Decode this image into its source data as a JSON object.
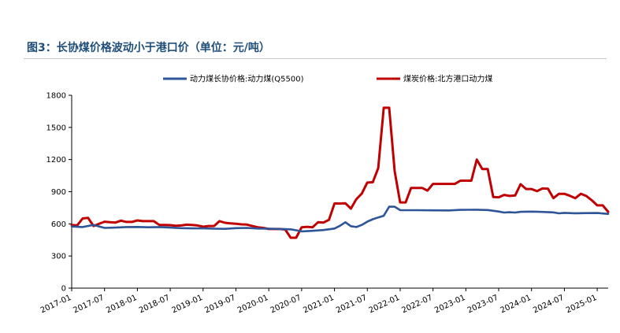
{
  "figure": {
    "title": "图3：长协煤价格波动小于港口价（单位：元/吨）"
  },
  "chart_data": {
    "type": "line",
    "title": "图3：长协煤价格波动小于港口价（单位：元/吨）",
    "xlabel": "",
    "ylabel": "",
    "ylim": [
      0,
      1800
    ],
    "yticks": [
      0,
      300,
      600,
      900,
      1200,
      1500,
      1800
    ],
    "xticks": [
      "2017-01",
      "2017-07",
      "2018-01",
      "2018-07",
      "2019-01",
      "2019-07",
      "2020-01",
      "2020-07",
      "2021-01",
      "2021-07",
      "2022-01",
      "2022-07",
      "2023-01",
      "2023-07",
      "2024-01",
      "2024-07",
      "2025-01"
    ],
    "legend_position": "top",
    "grid": false,
    "series": [
      {
        "name": "动力煤长协价格:动力煤(Q5500)",
        "color": "#2E5597",
        "points": [
          [
            "2017-01",
            575
          ],
          [
            "2017-03",
            570
          ],
          [
            "2017-05",
            590
          ],
          [
            "2017-07",
            562
          ],
          [
            "2017-09",
            565
          ],
          [
            "2017-11",
            570
          ],
          [
            "2018-01",
            571
          ],
          [
            "2018-03",
            568
          ],
          [
            "2018-05",
            570
          ],
          [
            "2018-07",
            565
          ],
          [
            "2018-09",
            560
          ],
          [
            "2018-11",
            558
          ],
          [
            "2019-01",
            558
          ],
          [
            "2019-03",
            555
          ],
          [
            "2019-05",
            553
          ],
          [
            "2019-07",
            560
          ],
          [
            "2019-09",
            562
          ],
          [
            "2019-11",
            556
          ],
          [
            "2020-01",
            555
          ],
          [
            "2020-03",
            552
          ],
          [
            "2020-05",
            549
          ],
          [
            "2020-06",
            540
          ],
          [
            "2020-07",
            530
          ],
          [
            "2020-09",
            535
          ],
          [
            "2020-11",
            542
          ],
          [
            "2021-01",
            556
          ],
          [
            "2021-02",
            582
          ],
          [
            "2021-03",
            615
          ],
          [
            "2021-04",
            578
          ],
          [
            "2021-05",
            570
          ],
          [
            "2021-06",
            590
          ],
          [
            "2021-07",
            620
          ],
          [
            "2021-08",
            643
          ],
          [
            "2021-09",
            660
          ],
          [
            "2021-10",
            675
          ],
          [
            "2021-11",
            760
          ],
          [
            "2021-12",
            760
          ],
          [
            "2022-01",
            728
          ],
          [
            "2022-04",
            727
          ],
          [
            "2022-07",
            726
          ],
          [
            "2022-10",
            725
          ],
          [
            "2022-12",
            730
          ],
          [
            "2023-01",
            731
          ],
          [
            "2023-03",
            732
          ],
          [
            "2023-05",
            729
          ],
          [
            "2023-07",
            715
          ],
          [
            "2023-08",
            705
          ],
          [
            "2023-09",
            708
          ],
          [
            "2023-10",
            705
          ],
          [
            "2023-11",
            712
          ],
          [
            "2024-01",
            714
          ],
          [
            "2024-03",
            711
          ],
          [
            "2024-05",
            707
          ],
          [
            "2024-06",
            698
          ],
          [
            "2024-07",
            702
          ],
          [
            "2024-09",
            699
          ],
          [
            "2024-11",
            700
          ],
          [
            "2025-01",
            701
          ],
          [
            "2025-03",
            693
          ]
        ]
      },
      {
        "name": "煤炭价格:北方港口动力煤",
        "color": "#C00000",
        "points": [
          [
            "2017-01",
            590
          ],
          [
            "2017-02",
            585
          ],
          [
            "2017-03",
            650
          ],
          [
            "2017-04",
            655
          ],
          [
            "2017-05",
            580
          ],
          [
            "2017-06",
            600
          ],
          [
            "2017-07",
            620
          ],
          [
            "2017-08",
            615
          ],
          [
            "2017-09",
            612
          ],
          [
            "2017-10",
            630
          ],
          [
            "2017-11",
            618
          ],
          [
            "2017-12",
            618
          ],
          [
            "2018-01",
            632
          ],
          [
            "2018-02",
            625
          ],
          [
            "2018-03",
            625
          ],
          [
            "2018-04",
            625
          ],
          [
            "2018-05",
            590
          ],
          [
            "2018-06",
            590
          ],
          [
            "2018-07",
            588
          ],
          [
            "2018-08",
            582
          ],
          [
            "2018-09",
            585
          ],
          [
            "2018-10",
            592
          ],
          [
            "2018-11",
            590
          ],
          [
            "2018-12",
            585
          ],
          [
            "2019-01",
            573
          ],
          [
            "2019-02",
            580
          ],
          [
            "2019-03",
            580
          ],
          [
            "2019-04",
            625
          ],
          [
            "2019-05",
            610
          ],
          [
            "2019-06",
            605
          ],
          [
            "2019-07",
            600
          ],
          [
            "2019-08",
            595
          ],
          [
            "2019-09",
            593
          ],
          [
            "2019-10",
            580
          ],
          [
            "2019-11",
            568
          ],
          [
            "2019-12",
            562
          ],
          [
            "2020-01",
            552
          ],
          [
            "2020-02",
            552
          ],
          [
            "2020-03",
            552
          ],
          [
            "2020-04",
            547
          ],
          [
            "2020-05",
            470
          ],
          [
            "2020-06",
            470
          ],
          [
            "2020-07",
            568
          ],
          [
            "2020-08",
            572
          ],
          [
            "2020-09",
            568
          ],
          [
            "2020-10",
            615
          ],
          [
            "2020-11",
            612
          ],
          [
            "2020-12",
            638
          ],
          [
            "2021-01",
            790
          ],
          [
            "2021-02",
            790
          ],
          [
            "2021-03",
            792
          ],
          [
            "2021-04",
            742
          ],
          [
            "2021-05",
            830
          ],
          [
            "2021-06",
            883
          ],
          [
            "2021-07",
            985
          ],
          [
            "2021-08",
            988
          ],
          [
            "2021-09",
            1120
          ],
          [
            "2021-10",
            1683
          ],
          [
            "2021-11",
            1683
          ],
          [
            "2021-12",
            1090
          ],
          [
            "2022-01",
            800
          ],
          [
            "2022-02",
            800
          ],
          [
            "2022-03",
            935
          ],
          [
            "2022-04",
            935
          ],
          [
            "2022-05",
            935
          ],
          [
            "2022-06",
            910
          ],
          [
            "2022-07",
            973
          ],
          [
            "2022-08",
            973
          ],
          [
            "2022-09",
            973
          ],
          [
            "2022-10",
            973
          ],
          [
            "2022-11",
            973
          ],
          [
            "2022-12",
            1003
          ],
          [
            "2023-01",
            1003
          ],
          [
            "2023-02",
            1003
          ],
          [
            "2023-03",
            1200
          ],
          [
            "2023-04",
            1111
          ],
          [
            "2023-05",
            1111
          ],
          [
            "2023-06",
            850
          ],
          [
            "2023-07",
            848
          ],
          [
            "2023-08",
            870
          ],
          [
            "2023-09",
            860
          ],
          [
            "2023-10",
            865
          ],
          [
            "2023-11",
            970
          ],
          [
            "2023-12",
            925
          ],
          [
            "2024-01",
            925
          ],
          [
            "2024-02",
            905
          ],
          [
            "2024-03",
            930
          ],
          [
            "2024-04",
            928
          ],
          [
            "2024-05",
            840
          ],
          [
            "2024-06",
            880
          ],
          [
            "2024-07",
            880
          ],
          [
            "2024-08",
            862
          ],
          [
            "2024-09",
            840
          ],
          [
            "2024-10",
            880
          ],
          [
            "2024-11",
            860
          ],
          [
            "2024-12",
            820
          ],
          [
            "2025-01",
            772
          ],
          [
            "2025-02",
            772
          ],
          [
            "2025-03",
            712
          ]
        ]
      }
    ]
  }
}
